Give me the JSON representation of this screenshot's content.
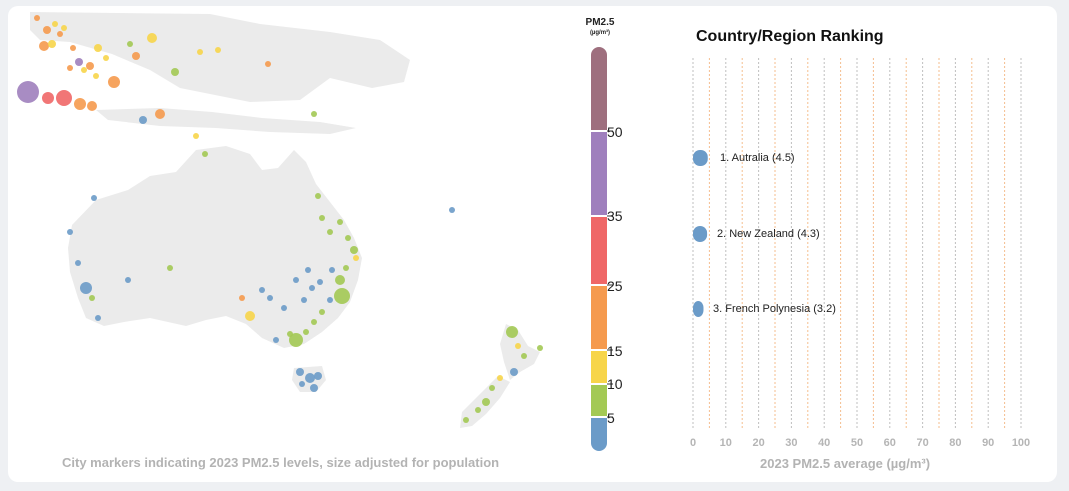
{
  "colors": {
    "band_0_5": "#6b9bc8",
    "band_5_10": "#a3c954",
    "band_10_15": "#f7d54a",
    "band_15_25": "#f59a4e",
    "band_25_35": "#ef6767",
    "band_35_50": "#9f7fbd",
    "band_50_plus": "#9e6f7e",
    "land": "#ebebeb",
    "gridline": "#f0a868",
    "gridline_alt": "#8a8a8a"
  },
  "map": {
    "caption": "City markers indicating 2023 PM2.5 levels, size adjusted for population"
  },
  "legend": {
    "title": "PM2.5",
    "unit": "(µg/m³)",
    "ticks": [
      "5",
      "10",
      "15",
      "25",
      "35",
      "50"
    ]
  },
  "ranking": {
    "title": "Country/Region Ranking",
    "x_axis_title": "2023 PM2.5 average (µg/m³)"
  },
  "chart_data": {
    "type": "scatter",
    "title": "Country/Region Ranking",
    "xlabel": "2023 PM2.5 average (µg/m³)",
    "xlim": [
      0,
      100
    ],
    "x_ticks": [
      0,
      10,
      20,
      30,
      40,
      50,
      60,
      70,
      80,
      90,
      100
    ],
    "grid": true,
    "entries": [
      {
        "rank": 1,
        "label": "1. Autralia (4.5)",
        "value": 4.5
      },
      {
        "rank": 2,
        "label": "2. New Zealand (4.3)",
        "value": 4.3
      },
      {
        "rank": 3,
        "label": "3. French Polynesia (3.2)",
        "value": 3.2
      }
    ]
  }
}
